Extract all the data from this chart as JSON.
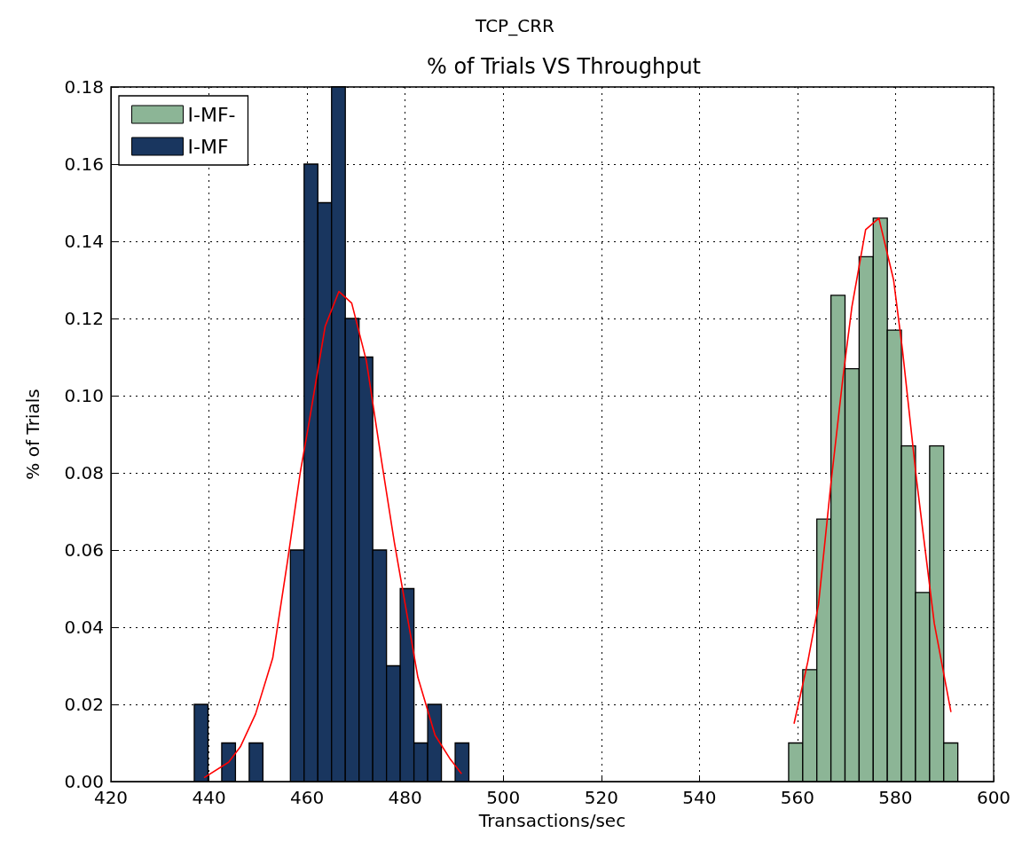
{
  "chart_data": {
    "type": "histogram",
    "title": "TCP_CRR",
    "subtitle": "% of Trials VS Throughput",
    "xlabel": "Transactions/sec",
    "ylabel": "% of Trials",
    "series": [
      {
        "name": "I-MF-",
        "color": "#8cb596",
        "bins": [
          558.2,
          561.075,
          563.95,
          566.825,
          569.7,
          572.575,
          575.45,
          578.325,
          581.2,
          584.075,
          586.95,
          589.825,
          592.7
        ],
        "values": [
          0.01,
          0.029,
          0.068,
          0.126,
          0.107,
          0.136,
          0.146,
          0.117,
          0.087,
          0.049,
          0.087,
          0.01
        ]
      },
      {
        "name": "I-MF",
        "color": "#19365f",
        "bins": [
          437,
          439.8,
          442.6,
          445.4,
          448.2,
          451,
          453.8,
          456.6,
          459.4,
          462.2,
          465,
          467.8,
          470.6,
          473.4,
          476.2,
          479,
          481.8,
          484.6,
          487.4,
          490.2,
          493
        ],
        "values": [
          0.02,
          0,
          0.01,
          0,
          0.01,
          0,
          0,
          0.06,
          0.16,
          0.15,
          0.18,
          0.12,
          0.11,
          0.06,
          0.03,
          0.05,
          0.01,
          0.02,
          0,
          0.01
        ]
      },
      {
        "type": "line",
        "color": "#ff0000",
        "x": [
          439,
          444,
          446.4,
          449.5,
          453,
          456,
          458.6,
          460.4,
          463.7,
          466.5,
          469.1,
          472.1,
          475.2,
          477.8,
          480,
          482.6,
          486.1,
          489.1,
          491.5
        ],
        "values": [
          0.001,
          0.005,
          0.009,
          0.0175,
          0.032,
          0.057,
          0.08,
          0.093,
          0.118,
          0.127,
          0.124,
          0.109,
          0.083,
          0.062,
          0.046,
          0.027,
          0.012,
          0.006,
          0.002
        ]
      },
      {
        "type": "line",
        "color": "#ff0000",
        "x": [
          559.3,
          562.1,
          564.3,
          566.8,
          569.3,
          571.1,
          573.9,
          576.6,
          579.6,
          581.4,
          584.3,
          587.9,
          591.3
        ],
        "values": [
          0.015,
          0.031,
          0.046,
          0.077,
          0.105,
          0.123,
          0.143,
          0.146,
          0.13,
          0.112,
          0.078,
          0.041,
          0.018
        ]
      }
    ],
    "xlim": [
      420,
      600
    ],
    "xticks": [
      420,
      440,
      460,
      480,
      500,
      520,
      540,
      560,
      580,
      600
    ],
    "ylim": [
      0,
      0.18
    ],
    "yticks": [
      {
        "value": 0,
        "label": "0.00"
      },
      {
        "value": 0.02,
        "label": "0.02"
      },
      {
        "value": 0.04,
        "label": "0.04"
      },
      {
        "value": 0.06,
        "label": "0.06"
      },
      {
        "value": 0.08,
        "label": "0.08"
      },
      {
        "value": 0.1,
        "label": "0.10"
      },
      {
        "value": 0.12,
        "label": "0.12"
      },
      {
        "value": 0.14,
        "label": "0.14"
      },
      {
        "value": 0.16,
        "label": "0.16"
      },
      {
        "value": 0.18,
        "label": "0.18"
      }
    ],
    "grid": true,
    "legend": "top left",
    "line_style": "solid"
  }
}
